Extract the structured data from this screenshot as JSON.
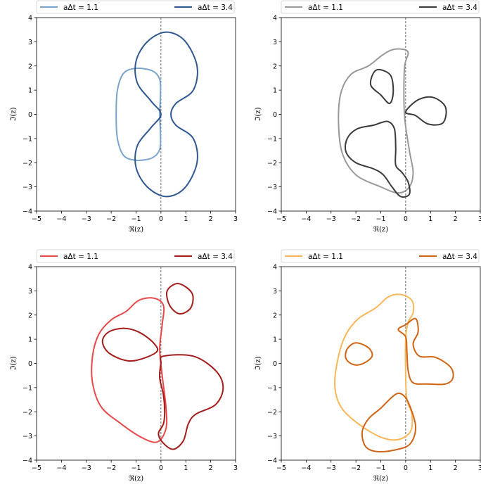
{
  "chart_data": [
    {
      "type": "line",
      "xlabel": "ℜ(z)",
      "ylabel": "ℑ(z)",
      "xlim": [
        -5,
        3
      ],
      "ylim": [
        -4,
        4
      ],
      "xticks": [
        -5,
        -4,
        -3,
        -2,
        -1,
        0,
        1,
        2,
        3
      ],
      "yticks": [
        -4,
        -3,
        -2,
        -1,
        0,
        1,
        2,
        3,
        4
      ],
      "grid": false,
      "legend": "top",
      "reference_line": "dashed vertical at x = 0",
      "series": [
        {
          "name": "aΔt = 1.1",
          "color": "#79a3cd",
          "curves": [
            [
              [
                -1.0,
                1.9
              ],
              [
                -0.35,
                1.8
              ],
              [
                -0.05,
                1.45
              ],
              [
                -0.02,
                0.8
              ],
              [
                -0.05,
                0.0
              ],
              [
                -0.02,
                -0.8
              ],
              [
                -0.05,
                -1.45
              ],
              [
                -0.35,
                -1.8
              ],
              [
                -1.0,
                -1.9
              ],
              [
                -1.5,
                -1.7
              ],
              [
                -1.75,
                -1.0
              ],
              [
                -1.8,
                0.0
              ],
              [
                -1.75,
                1.0
              ],
              [
                -1.5,
                1.7
              ]
            ]
          ]
        },
        {
          "name": "aΔt = 3.4",
          "color": "#2f5891",
          "curves": [
            [
              [
                0.2,
                3.4
              ],
              [
                0.95,
                3.05
              ],
              [
                1.45,
                2.0
              ],
              [
                1.3,
                1.0
              ],
              [
                0.6,
                0.45
              ],
              [
                0.4,
                0.0
              ],
              [
                0.6,
                -0.45
              ],
              [
                1.3,
                -1.0
              ],
              [
                1.45,
                -2.0
              ],
              [
                0.95,
                -3.05
              ],
              [
                0.2,
                -3.4
              ],
              [
                -0.55,
                -3.0
              ],
              [
                -1.0,
                -2.2
              ],
              [
                -0.95,
                -1.3
              ],
              [
                -0.4,
                -0.55
              ],
              [
                0.0,
                0.0
              ],
              [
                -0.4,
                0.55
              ],
              [
                -0.95,
                1.3
              ],
              [
                -1.0,
                2.2
              ],
              [
                -0.55,
                3.0
              ]
            ]
          ]
        }
      ]
    },
    {
      "type": "line",
      "xlabel": "ℜ(z)",
      "ylabel": "ℑ(z)",
      "xlim": [
        -5,
        3
      ],
      "ylim": [
        -4,
        4
      ],
      "xticks": [
        -5,
        -4,
        -3,
        -2,
        -1,
        0,
        1,
        2,
        3
      ],
      "yticks": [
        -4,
        -3,
        -2,
        -1,
        0,
        1,
        2,
        3,
        4
      ],
      "grid": false,
      "legend": "top",
      "reference_line": "dashed vertical at x = 0",
      "series": [
        {
          "name": "aΔt = 1.1",
          "color": "#999999",
          "curves": [
            [
              [
                -0.2,
                2.7
              ],
              [
                0.1,
                2.55
              ],
              [
                -0.05,
                1.9
              ],
              [
                -0.05,
                0.0
              ],
              [
                0.15,
                -1.5
              ],
              [
                0.3,
                -2.4
              ],
              [
                0.15,
                -3.0
              ],
              [
                -0.3,
                -3.25
              ],
              [
                -1.0,
                -3.0
              ],
              [
                -2.0,
                -2.5
              ],
              [
                -2.55,
                -1.6
              ],
              [
                -2.7,
                -0.3
              ],
              [
                -2.6,
                0.9
              ],
              [
                -2.2,
                1.65
              ],
              [
                -1.5,
                2.0
              ],
              [
                -1.0,
                2.4
              ],
              [
                -0.6,
                2.65
              ]
            ]
          ]
        },
        {
          "name": "aΔt = 3.4",
          "color": "#3a3a3a",
          "curves": [
            [
              [
                -1.05,
                1.85
              ],
              [
                -0.6,
                1.6
              ],
              [
                -0.5,
                0.9
              ],
              [
                -0.65,
                0.45
              ],
              [
                -1.0,
                0.8
              ],
              [
                -1.4,
                1.2
              ],
              [
                -1.3,
                1.7
              ]
            ],
            [
              [
                0.0,
                0.1
              ],
              [
                0.5,
                0.6
              ],
              [
                1.1,
                0.7
              ],
              [
                1.6,
                0.3
              ],
              [
                1.5,
                -0.35
              ],
              [
                0.9,
                -0.4
              ],
              [
                0.4,
                -0.05
              ]
            ],
            [
              [
                -0.7,
                -0.3
              ],
              [
                -0.45,
                -0.6
              ],
              [
                -0.4,
                -1.4
              ],
              [
                -0.4,
                -2.1
              ],
              [
                -0.15,
                -2.4
              ],
              [
                0.1,
                -2.8
              ],
              [
                0.15,
                -3.3
              ],
              [
                -0.2,
                -3.4
              ],
              [
                -0.55,
                -3.0
              ],
              [
                -0.9,
                -2.5
              ],
              [
                -1.3,
                -2.25
              ],
              [
                -2.0,
                -2.0
              ],
              [
                -2.4,
                -1.55
              ],
              [
                -2.35,
                -1.0
              ],
              [
                -1.95,
                -0.6
              ],
              [
                -1.3,
                -0.45
              ],
              [
                -1.0,
                -0.35
              ]
            ]
          ]
        }
      ]
    },
    {
      "type": "line",
      "xlabel": "ℜ(z)",
      "ylabel": "ℑ(z)",
      "xlim": [
        -5,
        3
      ],
      "ylim": [
        -4,
        4
      ],
      "xticks": [
        -5,
        -4,
        -3,
        -2,
        -1,
        0,
        1,
        2,
        3
      ],
      "yticks": [
        -4,
        -3,
        -2,
        -1,
        0,
        1,
        2,
        3,
        4
      ],
      "grid": false,
      "legend": "top",
      "reference_line": "dashed vertical at x = 0",
      "series": [
        {
          "name": "aΔt = 1.1",
          "color": "#e8484a",
          "curves": [
            [
              [
                -0.3,
                2.7
              ],
              [
                0.1,
                2.4
              ],
              [
                0.05,
                1.6
              ],
              [
                -0.05,
                0.6
              ],
              [
                0.05,
                -0.5
              ],
              [
                0.2,
                -1.8
              ],
              [
                0.2,
                -2.7
              ],
              [
                -0.15,
                -3.25
              ],
              [
                -0.8,
                -3.05
              ],
              [
                -1.6,
                -2.5
              ],
              [
                -2.4,
                -1.8
              ],
              [
                -2.75,
                -0.8
              ],
              [
                -2.75,
                0.3
              ],
              [
                -2.5,
                1.2
              ],
              [
                -2.0,
                1.8
              ],
              [
                -1.4,
                2.15
              ],
              [
                -0.9,
                2.6
              ]
            ]
          ]
        },
        {
          "name": "aΔt = 3.4",
          "color": "#a51c1c",
          "curves": [
            [
              [
                0.7,
                3.3
              ],
              [
                1.25,
                2.9
              ],
              [
                1.2,
                2.3
              ],
              [
                0.75,
                2.05
              ],
              [
                0.35,
                2.4
              ],
              [
                0.25,
                3.0
              ]
            ],
            [
              [
                -1.5,
                1.45
              ],
              [
                -0.9,
                1.3
              ],
              [
                -0.3,
                0.85
              ],
              [
                -0.2,
                0.45
              ],
              [
                -1.2,
                0.1
              ],
              [
                -2.05,
                0.4
              ],
              [
                -2.35,
                0.9
              ],
              [
                -2.1,
                1.3
              ]
            ],
            [
              [
                0.1,
                0.3
              ],
              [
                1.3,
                0.3
              ],
              [
                2.2,
                -0.3
              ],
              [
                2.5,
                -1.0
              ],
              [
                2.2,
                -1.7
              ],
              [
                1.4,
                -2.1
              ],
              [
                1.1,
                -2.5
              ],
              [
                0.9,
                -3.2
              ],
              [
                0.5,
                -3.55
              ],
              [
                0.1,
                -3.3
              ],
              [
                -0.1,
                -2.9
              ],
              [
                0.1,
                -2.5
              ],
              [
                0.15,
                -2.0
              ],
              [
                0.1,
                -1.3
              ],
              [
                -0.05,
                -0.6
              ],
              [
                0.0,
                0.0
              ]
            ]
          ]
        }
      ]
    },
    {
      "type": "line",
      "xlabel": "ℜ(z)",
      "ylabel": "ℑ(z)",
      "xlim": [
        -5,
        3
      ],
      "ylim": [
        -4,
        4
      ],
      "xticks": [
        -5,
        -4,
        -3,
        -2,
        -1,
        0,
        1,
        2,
        3
      ],
      "yticks": [
        -4,
        -3,
        -2,
        -1,
        0,
        1,
        2,
        3,
        4
      ],
      "grid": false,
      "legend": "top",
      "reference_line": "dashed vertical at x = 0",
      "series": [
        {
          "name": "aΔt = 1.1",
          "color": "#f9b75a",
          "curves": [
            [
              [
                -0.2,
                2.85
              ],
              [
                0.25,
                2.6
              ],
              [
                0.3,
                2.1
              ],
              [
                0.1,
                1.7
              ],
              [
                0.0,
                1.0
              ],
              [
                0.0,
                -0.5
              ],
              [
                0.05,
                -1.5
              ],
              [
                0.25,
                -2.1
              ],
              [
                0.2,
                -2.8
              ],
              [
                -0.3,
                -3.15
              ],
              [
                -1.0,
                -3.05
              ],
              [
                -1.9,
                -2.5
              ],
              [
                -2.6,
                -1.8
              ],
              [
                -2.85,
                -0.9
              ],
              [
                -2.7,
                0.3
              ],
              [
                -2.4,
                1.2
              ],
              [
                -1.9,
                1.85
              ],
              [
                -1.2,
                2.3
              ],
              [
                -0.7,
                2.75
              ]
            ]
          ]
        },
        {
          "name": "aΔt = 3.4",
          "color": "#cf6414",
          "curves": [
            [
              [
                -2.0,
                0.85
              ],
              [
                -1.5,
                0.65
              ],
              [
                -1.35,
                0.3
              ],
              [
                -1.7,
                0.0
              ],
              [
                -2.1,
                -0.05
              ],
              [
                -2.4,
                0.2
              ],
              [
                -2.35,
                0.6
              ]
            ],
            [
              [
                0.0,
                1.6
              ],
              [
                0.4,
                1.85
              ],
              [
                0.5,
                1.3
              ],
              [
                0.3,
                0.8
              ],
              [
                0.55,
                0.3
              ],
              [
                1.2,
                0.25
              ],
              [
                1.8,
                -0.15
              ],
              [
                1.9,
                -0.6
              ],
              [
                1.6,
                -0.85
              ],
              [
                0.9,
                -0.85
              ],
              [
                0.3,
                -0.8
              ],
              [
                0.1,
                -0.3
              ],
              [
                0.05,
                0.5
              ],
              [
                0.0,
                1.1
              ],
              [
                -0.3,
                1.4
              ]
            ],
            [
              [
                -0.2,
                -1.25
              ],
              [
                0.1,
                -1.6
              ],
              [
                0.4,
                -2.6
              ],
              [
                0.2,
                -3.3
              ],
              [
                -0.3,
                -3.55
              ],
              [
                -1.1,
                -3.65
              ],
              [
                -1.6,
                -3.45
              ],
              [
                -1.75,
                -2.85
              ],
              [
                -1.5,
                -2.3
              ],
              [
                -1.0,
                -1.85
              ],
              [
                -0.5,
                -1.35
              ]
            ]
          ]
        }
      ]
    }
  ]
}
